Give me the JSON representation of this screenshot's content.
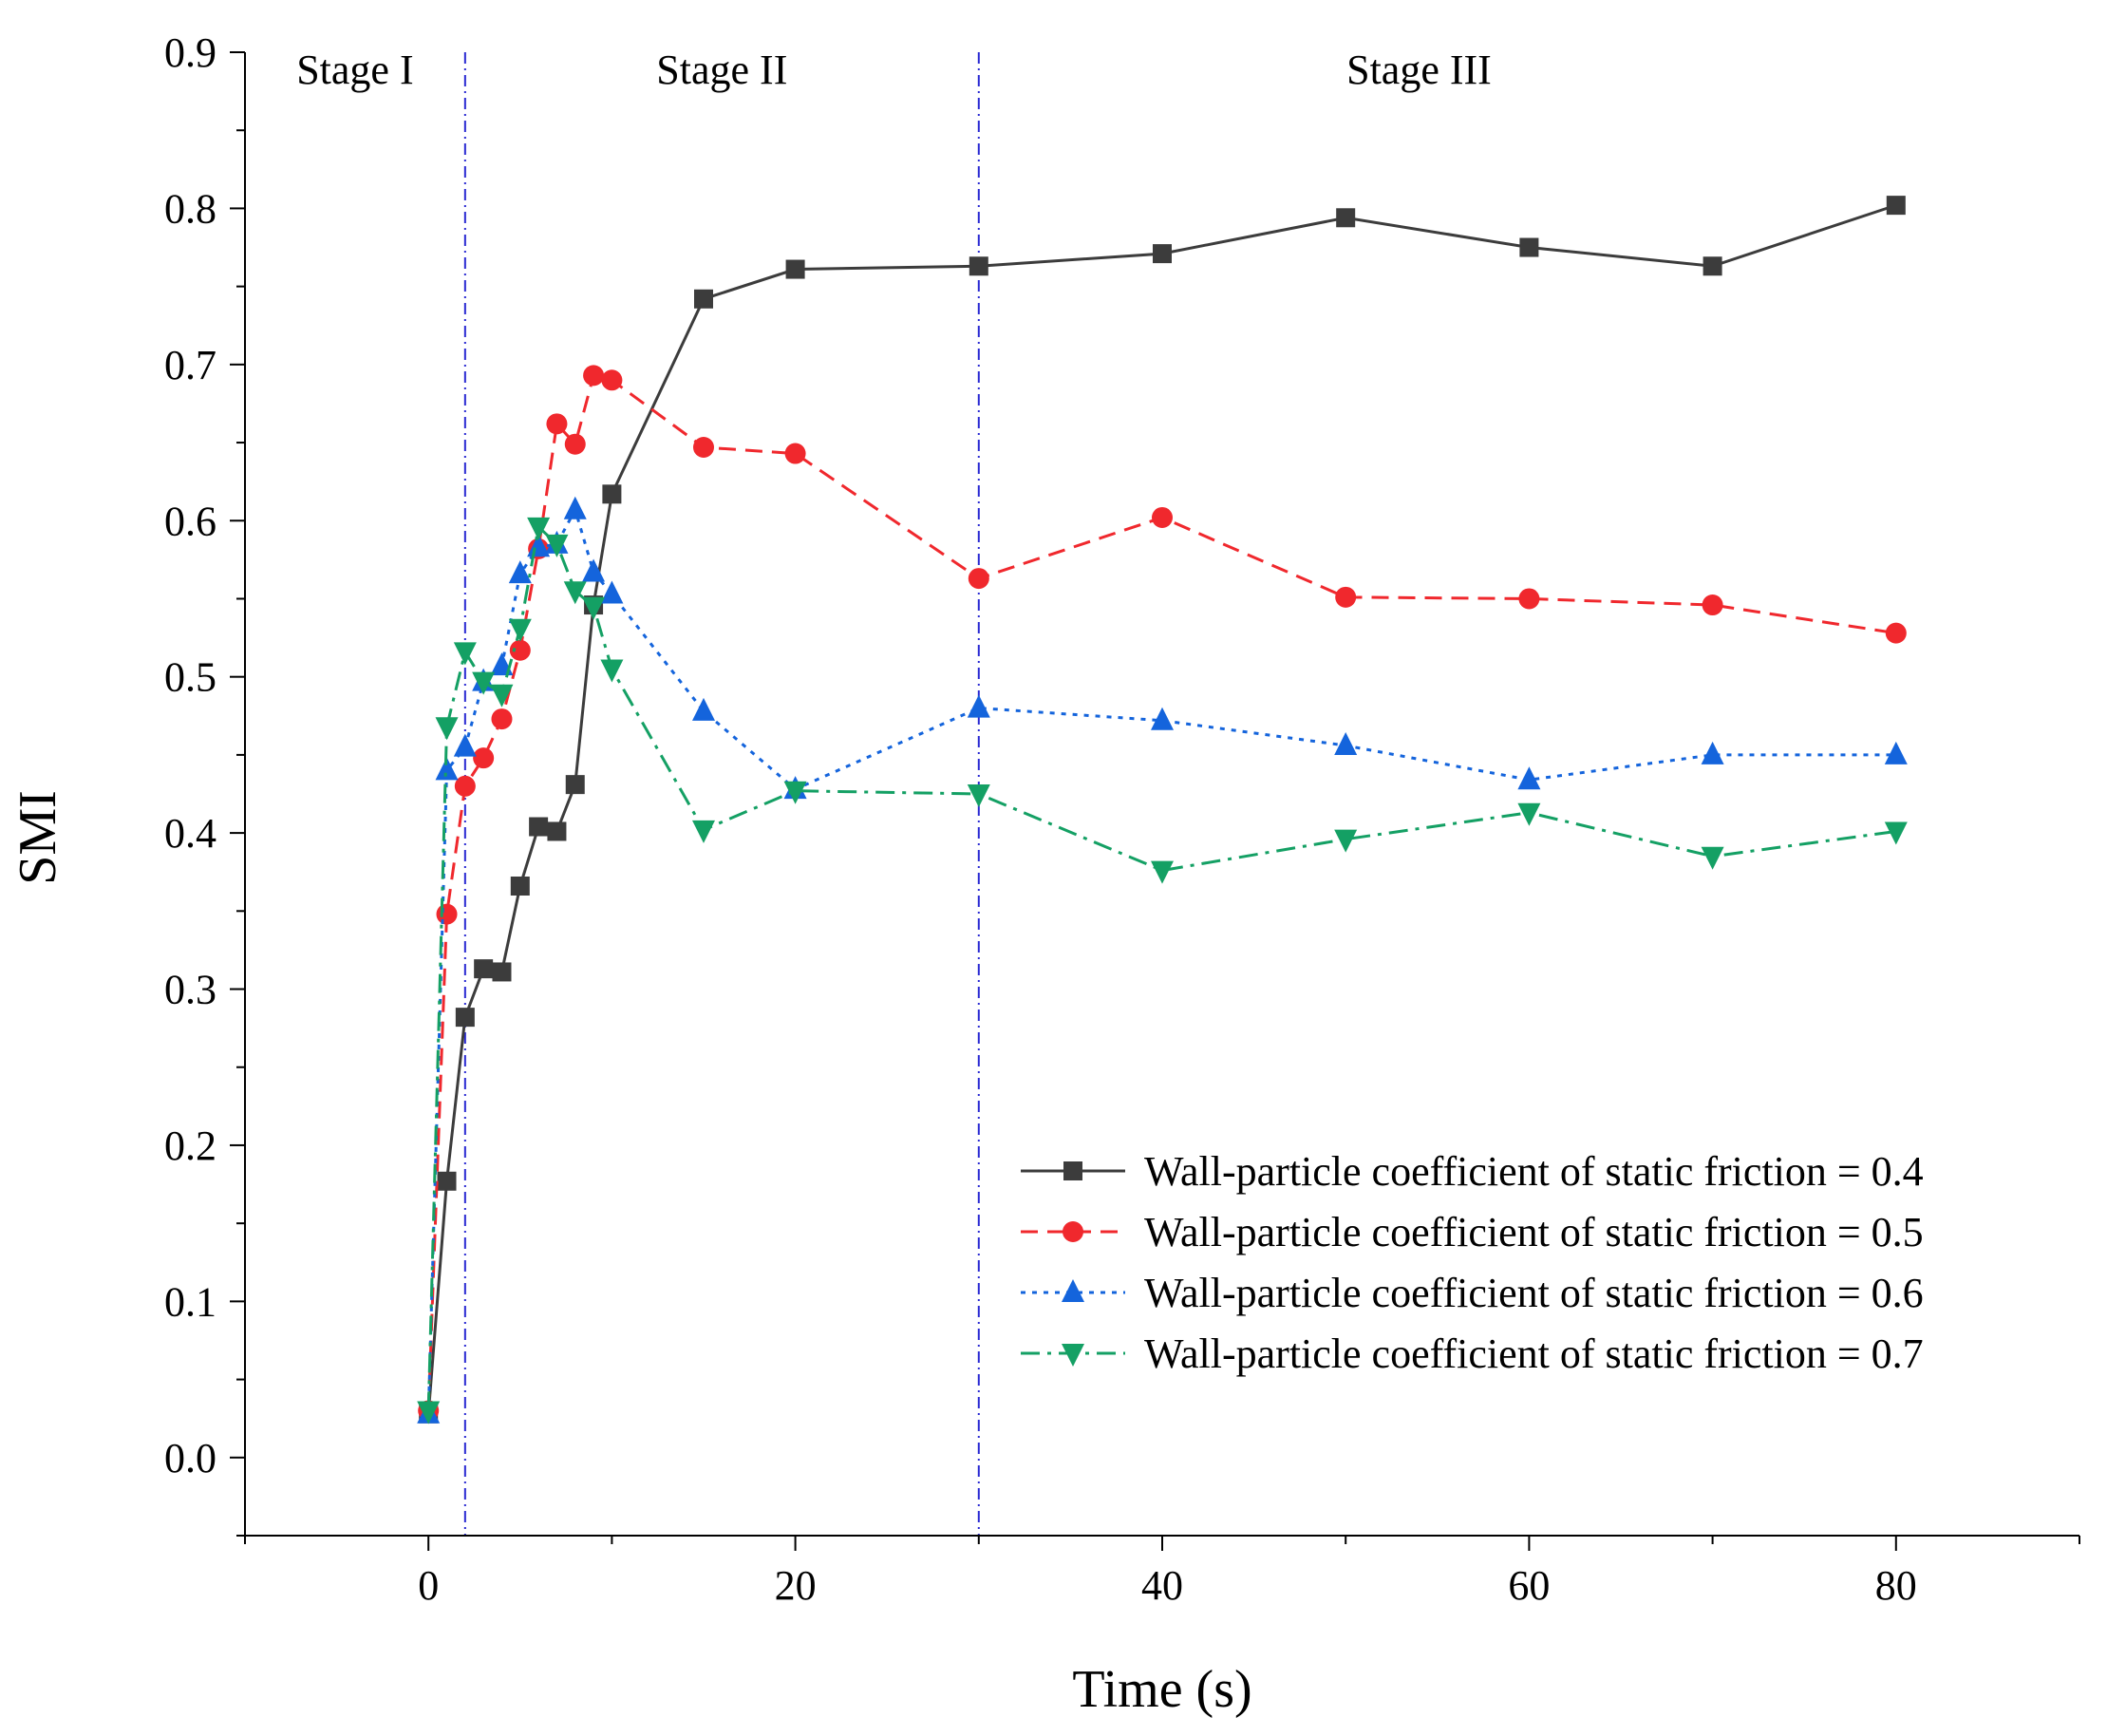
{
  "chart_data": {
    "type": "line",
    "title": "",
    "xlabel": "Time (s)",
    "ylabel": "SMI",
    "xlim": [
      -10,
      90
    ],
    "ylim": [
      -0.05,
      0.9
    ],
    "xticks": [
      0,
      20,
      40,
      60,
      80
    ],
    "xtick_labels": [
      "0",
      "20",
      "40",
      "60",
      "80"
    ],
    "yticks": [
      0.0,
      0.1,
      0.2,
      0.3,
      0.4,
      0.5,
      0.6,
      0.7,
      0.8,
      0.9
    ],
    "ytick_labels": [
      "0.0",
      "0.1",
      "0.2",
      "0.3",
      "0.4",
      "0.5",
      "0.6",
      "0.7",
      "0.8",
      "0.9"
    ],
    "grid": false,
    "legend_position": "bottom-right",
    "stage_lines": [
      2,
      30
    ],
    "stages": [
      {
        "label": "Stage I",
        "x": -4
      },
      {
        "label": "Stage II",
        "x": 16
      },
      {
        "label": "Stage III",
        "x": 54
      }
    ],
    "series": [
      {
        "name": "Wall-particle coefficient of static friction = 0.4",
        "color": "#3c3c3c",
        "marker": "square",
        "dash": "solid",
        "x": [
          0,
          1,
          2,
          3,
          4,
          5,
          6,
          7,
          8,
          9,
          10,
          15,
          20,
          30,
          40,
          50,
          60,
          70,
          80
        ],
        "y": [
          0.028,
          0.177,
          0.282,
          0.313,
          0.311,
          0.366,
          0.404,
          0.401,
          0.431,
          0.546,
          0.617,
          0.742,
          0.761,
          0.763,
          0.771,
          0.794,
          0.775,
          0.763,
          0.802
        ]
      },
      {
        "name": "Wall-particle coefficient of static friction = 0.5",
        "color": "#f0282d",
        "marker": "circle",
        "dash": "dashed",
        "x": [
          0,
          1,
          2,
          3,
          4,
          5,
          6,
          7,
          8,
          9,
          10,
          15,
          20,
          30,
          40,
          50,
          60,
          70,
          80
        ],
        "y": [
          0.03,
          0.348,
          0.43,
          0.448,
          0.473,
          0.517,
          0.582,
          0.662,
          0.649,
          0.693,
          0.69,
          0.647,
          0.643,
          0.563,
          0.602,
          0.551,
          0.55,
          0.546,
          0.528
        ]
      },
      {
        "name": "Wall-particle coefficient of static friction = 0.6",
        "color": "#1464dc",
        "marker": "triangle-up",
        "dash": "dotted",
        "x": [
          0,
          1,
          2,
          3,
          4,
          5,
          6,
          7,
          8,
          9,
          10,
          15,
          20,
          30,
          40,
          50,
          60,
          70,
          80
        ],
        "y": [
          0.028,
          0.44,
          0.455,
          0.497,
          0.507,
          0.566,
          0.583,
          0.585,
          0.607,
          0.567,
          0.553,
          0.478,
          0.428,
          0.48,
          0.472,
          0.456,
          0.434,
          0.45,
          0.45
        ]
      },
      {
        "name": "Wall-particle coefficient of static friction = 0.7",
        "color": "#14a064",
        "marker": "triangle-down",
        "dash": "dashdot",
        "x": [
          0,
          1,
          2,
          3,
          4,
          5,
          6,
          7,
          8,
          9,
          10,
          15,
          20,
          30,
          40,
          50,
          60,
          70,
          80
        ],
        "y": [
          0.03,
          0.468,
          0.516,
          0.497,
          0.489,
          0.531,
          0.596,
          0.585,
          0.555,
          0.545,
          0.505,
          0.402,
          0.427,
          0.425,
          0.376,
          0.396,
          0.413,
          0.385,
          0.401
        ]
      }
    ]
  }
}
